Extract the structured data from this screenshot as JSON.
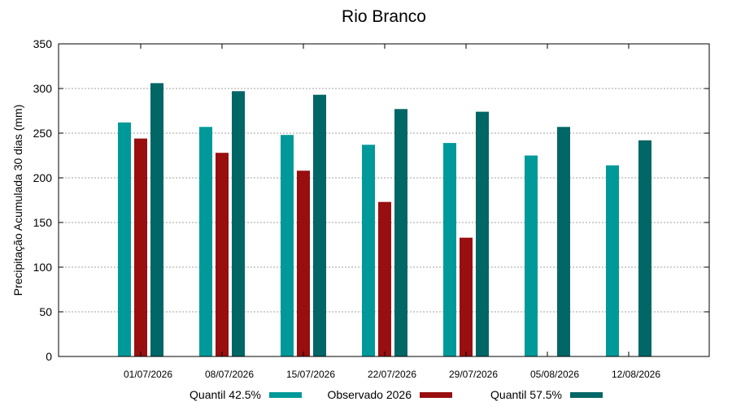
{
  "chart_data": {
    "type": "bar",
    "title": "Rio Branco",
    "ylabel": "Precipitação Acumulada 30 dias (mm)",
    "xlabel": "",
    "ylim": [
      0,
      350
    ],
    "yticks": [
      0,
      50,
      100,
      150,
      200,
      250,
      300,
      350
    ],
    "grid": true,
    "legend_position": "bottom",
    "categories": [
      "01/07/2026",
      "08/07/2026",
      "15/07/2026",
      "22/07/2026",
      "29/07/2026",
      "05/08/2026",
      "12/08/2026"
    ],
    "series": [
      {
        "name": "Quantil 42.5%",
        "color": "#009999",
        "values": [
          262,
          257,
          248,
          237,
          239,
          225,
          214
        ]
      },
      {
        "name": "Observado 2026",
        "color": "#990f0f",
        "values": [
          244,
          228,
          208,
          173,
          133,
          null,
          null
        ]
      },
      {
        "name": "Quantil 57.5%",
        "color": "#006666",
        "values": [
          306,
          297,
          293,
          277,
          274,
          257,
          242
        ]
      }
    ]
  }
}
